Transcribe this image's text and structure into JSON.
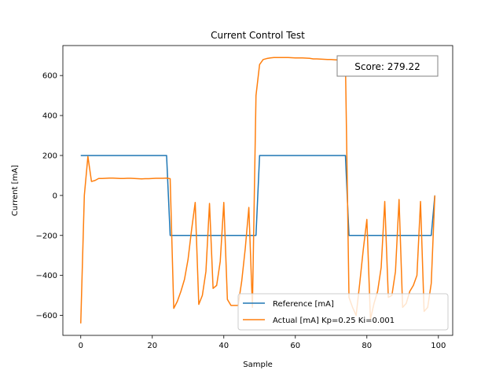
{
  "chart_data": {
    "type": "line",
    "title": "Current Control Test",
    "xlabel": "Sample",
    "ylabel": "Current [mA]",
    "xlim": [
      -5,
      104
    ],
    "ylim": [
      -700,
      750
    ],
    "xticks": [
      0,
      20,
      40,
      60,
      80,
      100
    ],
    "yticks": [
      -600,
      -400,
      -200,
      0,
      200,
      400,
      600
    ],
    "legend_position": "lower right",
    "annotation": "Score: 279.22",
    "grid": false,
    "series": [
      {
        "name": "Reference [mA]",
        "color": "#1f77b4",
        "x": [
          0,
          1,
          2,
          3,
          4,
          5,
          6,
          7,
          8,
          9,
          10,
          11,
          12,
          13,
          14,
          15,
          16,
          17,
          18,
          19,
          20,
          21,
          22,
          23,
          24,
          25,
          26,
          27,
          28,
          29,
          30,
          31,
          32,
          33,
          34,
          35,
          36,
          37,
          38,
          39,
          40,
          41,
          42,
          43,
          44,
          45,
          46,
          47,
          48,
          49,
          50,
          51,
          52,
          53,
          54,
          55,
          56,
          57,
          58,
          59,
          60,
          61,
          62,
          63,
          64,
          65,
          66,
          67,
          68,
          69,
          70,
          71,
          72,
          73,
          74,
          75,
          76,
          77,
          78,
          79,
          80,
          81,
          82,
          83,
          84,
          85,
          86,
          87,
          88,
          89,
          90,
          91,
          92,
          93,
          94,
          95,
          96,
          97,
          98,
          99
        ],
        "y": [
          200,
          200,
          200,
          200,
          200,
          200,
          200,
          200,
          200,
          200,
          200,
          200,
          200,
          200,
          200,
          200,
          200,
          200,
          200,
          200,
          200,
          200,
          200,
          200,
          200,
          -200,
          -200,
          -200,
          -200,
          -200,
          -200,
          -200,
          -200,
          -200,
          -200,
          -200,
          -200,
          -200,
          -200,
          -200,
          -200,
          -200,
          -200,
          -200,
          -200,
          -200,
          -200,
          -200,
          -200,
          -200,
          200,
          200,
          200,
          200,
          200,
          200,
          200,
          200,
          200,
          200,
          200,
          200,
          200,
          200,
          200,
          200,
          200,
          200,
          200,
          200,
          200,
          200,
          200,
          200,
          200,
          -200,
          -200,
          -200,
          -200,
          -200,
          -200,
          -200,
          -200,
          -200,
          -200,
          -200,
          -200,
          -200,
          -200,
          -200,
          -200,
          -200,
          -200,
          -200,
          -200,
          -200,
          -200,
          -200,
          -200,
          0
        ]
      },
      {
        "name": "Actual [mA] Kp=0.25 Ki=0.001",
        "color": "#ff7f0e",
        "x": [
          0,
          1,
          2,
          3,
          4,
          5,
          6,
          7,
          8,
          9,
          10,
          11,
          12,
          13,
          14,
          15,
          16,
          17,
          18,
          19,
          20,
          21,
          22,
          23,
          24,
          25,
          26,
          27,
          28,
          29,
          30,
          31,
          32,
          33,
          34,
          35,
          36,
          37,
          38,
          39,
          40,
          41,
          42,
          43,
          44,
          45,
          46,
          47,
          48,
          49,
          50,
          51,
          52,
          53,
          54,
          55,
          56,
          57,
          58,
          59,
          60,
          61,
          62,
          63,
          64,
          65,
          66,
          67,
          68,
          69,
          70,
          71,
          72,
          73,
          74,
          75,
          76,
          77,
          78,
          79,
          80,
          81,
          82,
          83,
          84,
          85,
          86,
          87,
          88,
          89,
          90,
          91,
          92,
          93,
          94,
          95,
          96,
          97,
          98,
          99
        ],
        "y": [
          -640,
          0,
          195,
          70,
          75,
          85,
          85,
          86,
          87,
          87,
          86,
          85,
          85,
          86,
          86,
          85,
          84,
          83,
          84,
          84,
          85,
          86,
          86,
          86,
          87,
          84,
          -565,
          -530,
          -480,
          -420,
          -320,
          -170,
          -35,
          -545,
          -500,
          -380,
          -40,
          -465,
          -450,
          -330,
          -35,
          -520,
          -550,
          -550,
          -550,
          -430,
          -265,
          -60,
          -560,
          500,
          655,
          680,
          685,
          688,
          690,
          690,
          690,
          690,
          690,
          689,
          688,
          688,
          688,
          687,
          686,
          683,
          683,
          682,
          681,
          680,
          680,
          679,
          678,
          677,
          675,
          -510,
          -560,
          -600,
          -440,
          -270,
          -120,
          -620,
          -540,
          -480,
          -360,
          -30,
          -510,
          -500,
          -380,
          -20,
          -560,
          -540,
          -480,
          -450,
          -400,
          -30,
          -580,
          -560,
          -440,
          0
        ]
      }
    ]
  }
}
